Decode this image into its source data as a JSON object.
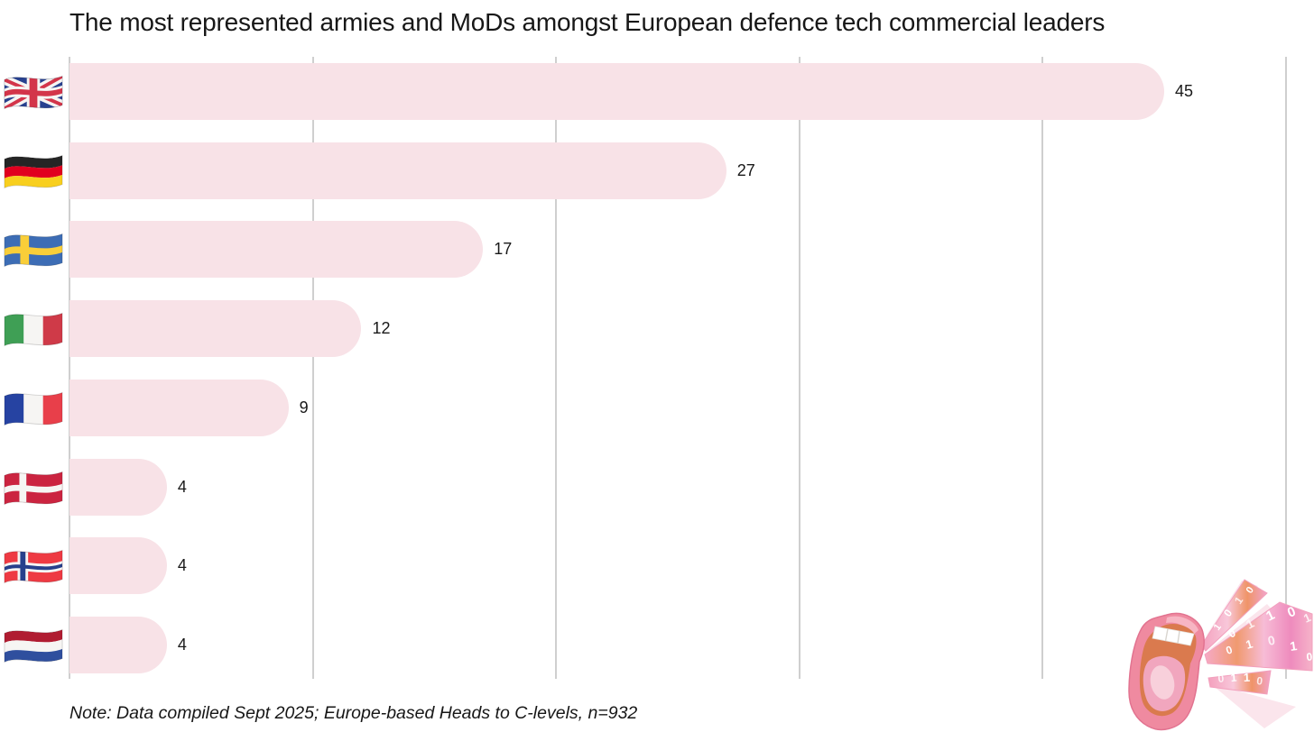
{
  "page": {
    "background": "#ffffff"
  },
  "chart_data": {
    "type": "bar",
    "orientation": "horizontal",
    "title": "The most represented armies and MoDs amongst European defence tech commercial leaders",
    "note": "Note: Data compiled Sept 2025; Europe-based Heads to C-levels, n=932",
    "categories": [
      "United Kingdom",
      "Germany",
      "Sweden",
      "Italy",
      "France",
      "Denmark",
      "Norway",
      "Netherlands"
    ],
    "flags": [
      "gb",
      "de",
      "se",
      "it",
      "fr",
      "dk",
      "no",
      "nl"
    ],
    "flag_icon_names": [
      "uk-flag-icon",
      "germany-flag-icon",
      "sweden-flag-icon",
      "italy-flag-icon",
      "france-flag-icon",
      "denmark-flag-icon",
      "norway-flag-icon",
      "netherlands-flag-icon"
    ],
    "values": [
      45,
      27,
      17,
      12,
      9,
      4,
      4,
      4
    ],
    "xlim": [
      0,
      50
    ],
    "gridline_values": [
      0,
      10,
      20,
      30,
      40,
      50
    ],
    "grid": true,
    "legend": false,
    "bar_color": "#f8e2e7",
    "gridline_color": "#cfcfcf",
    "label_color": "#191919"
  },
  "illustration": {
    "description": "Open mouth shouting fanned wedges filled with binary digits",
    "digits": [
      "1",
      "0",
      "1",
      "0",
      "0",
      "1",
      "1",
      "0",
      "1",
      "0"
    ]
  }
}
